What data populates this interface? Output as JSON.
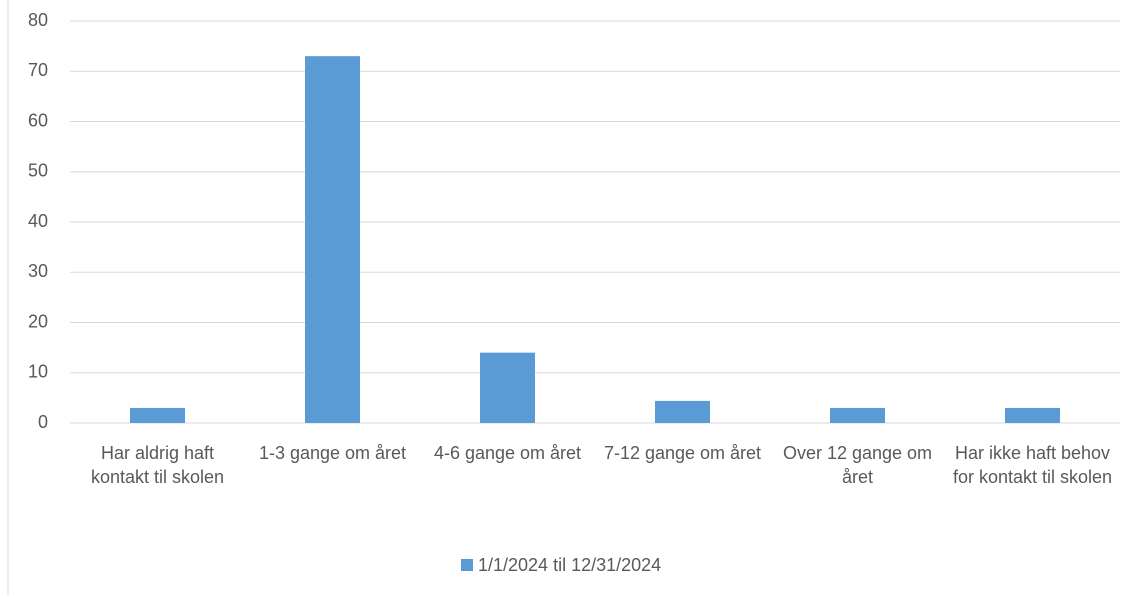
{
  "chart_data": {
    "type": "bar",
    "categories": [
      "Har aldrig haft kontakt til skolen",
      "1-3 gange om året",
      "4-6 gange om året",
      "7-12 gange om året",
      "Over 12 gange om året",
      "Har ikke haft behov for kontakt til skolen"
    ],
    "series": [
      {
        "name": "1/1/2024 til 12/31/2024",
        "color": "#5b9bd5",
        "values": [
          3,
          73,
          14,
          4.4,
          3,
          3
        ]
      }
    ],
    "ylim": [
      0,
      80
    ],
    "yticks": [
      0,
      10,
      20,
      30,
      40,
      50,
      60,
      70,
      80
    ],
    "grid": true,
    "legend": "bottom"
  }
}
